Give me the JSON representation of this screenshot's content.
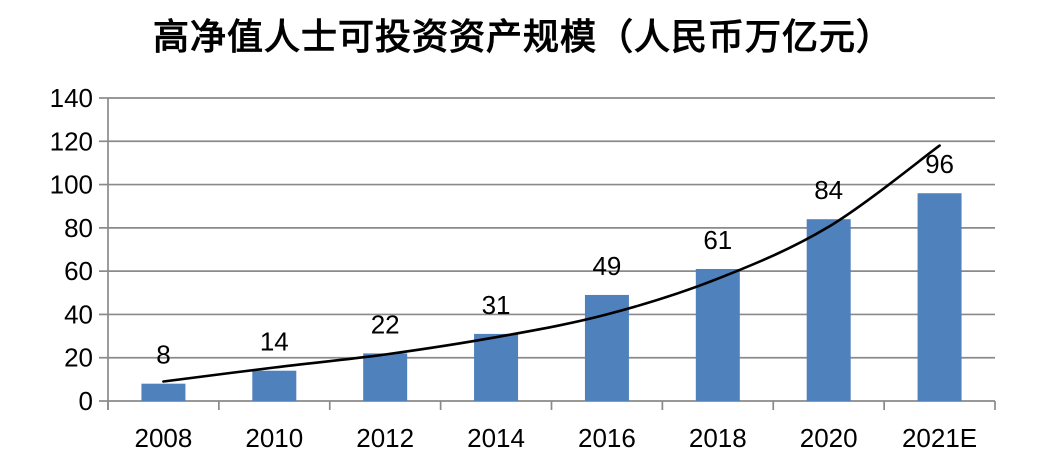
{
  "title": "高净值人士可投资资产规模（人民币万亿元）",
  "chart_data": {
    "type": "bar",
    "title": "高净值人士可投资资产规模（人民币万亿元）",
    "categories": [
      "2008",
      "2010",
      "2012",
      "2014",
      "2016",
      "2018",
      "2020",
      "2021E"
    ],
    "values": [
      8,
      14,
      22,
      31,
      49,
      61,
      84,
      96
    ],
    "data_labels": [
      8,
      14,
      22,
      31,
      49,
      61,
      84,
      96
    ],
    "overlay_line": {
      "type": "line",
      "note": "smooth black trendline over bars, ends above last bar",
      "values_estimated": [
        9,
        15.5,
        21.5,
        29.5,
        40,
        56.5,
        80.5,
        118
      ]
    },
    "xlabel": "",
    "ylabel": "",
    "ylim": [
      0,
      140
    ],
    "yticks": [
      0,
      20,
      40,
      60,
      80,
      100,
      120,
      140
    ],
    "grid": true,
    "legend": "none",
    "colors": {
      "bar": "#4F81BD",
      "trendline": "#000000",
      "axis_and_grid": "#8A8A8A",
      "text": "#000000",
      "background": "#FFFFFF"
    }
  }
}
